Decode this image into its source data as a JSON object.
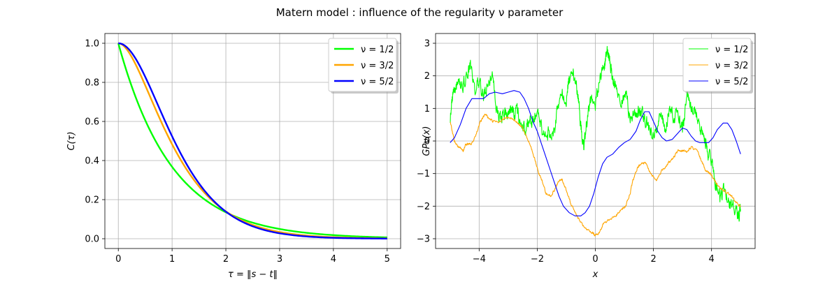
{
  "figure": {
    "title": "Matern model : influence of the regularity ν parameter"
  },
  "chart_data": [
    {
      "type": "line",
      "xlabel": "τ = ‖s − t‖",
      "ylabel": "C(τ)",
      "xlim": [
        -0.25,
        5.25
      ],
      "ylim": [
        -0.05,
        1.05
      ],
      "xticks": [
        0,
        1,
        2,
        3,
        4,
        5
      ],
      "yticks": [
        0.0,
        0.2,
        0.4,
        0.6,
        0.8,
        1.0
      ],
      "xtick_labels": [
        "0",
        "1",
        "2",
        "3",
        "4",
        "5"
      ],
      "ytick_labels": [
        "0.0",
        "0.2",
        "0.4",
        "0.6",
        "0.8",
        "1.0"
      ],
      "grid": true,
      "legend_position": "top-right",
      "x_samples": {
        "start": 0,
        "stop": 5,
        "step": 0.1
      },
      "series": [
        {
          "name": "ν = 1/2",
          "color": "#00ff00",
          "kind": "matern12",
          "length_scale": 1.0
        },
        {
          "name": "ν = 3/2",
          "color": "#ffa500",
          "kind": "matern32",
          "length_scale": 1.0
        },
        {
          "name": "ν = 5/2",
          "color": "#0000ff",
          "kind": "matern52",
          "length_scale": 1.0
        }
      ]
    },
    {
      "type": "line",
      "xlabel": "x",
      "ylabel": "GPν(x)",
      "xlim": [
        -5.5,
        5.5
      ],
      "ylim": [
        -3.3,
        3.3
      ],
      "xticks": [
        -4,
        -2,
        0,
        2,
        4
      ],
      "yticks": [
        -3,
        -2,
        -1,
        0,
        1,
        2,
        3
      ],
      "xtick_labels": [
        "−4",
        "−2",
        "0",
        "2",
        "4"
      ],
      "ytick_labels": [
        "−3",
        "−2",
        "−1",
        "0",
        "1",
        "2",
        "3"
      ],
      "grid": true,
      "legend_position": "top-right",
      "series": [
        {
          "name": "ν = 1/2",
          "color": "#00ff00",
          "noise_amplitude": 0.22,
          "points": [
            [
              -5.0,
              0.7
            ],
            [
              -4.9,
              1.5
            ],
            [
              -4.75,
              1.8
            ],
            [
              -4.6,
              1.6
            ],
            [
              -4.45,
              2.0
            ],
            [
              -4.3,
              2.3
            ],
            [
              -4.15,
              1.6
            ],
            [
              -4.0,
              1.9
            ],
            [
              -3.85,
              1.4
            ],
            [
              -3.7,
              1.7
            ],
            [
              -3.55,
              2.1
            ],
            [
              -3.4,
              1.0
            ],
            [
              -3.25,
              0.6
            ],
            [
              -3.1,
              0.9
            ],
            [
              -2.95,
              1.0
            ],
            [
              -2.8,
              0.9
            ],
            [
              -2.65,
              0.8
            ],
            [
              -2.5,
              0.3
            ],
            [
              -2.35,
              0.5
            ],
            [
              -2.2,
              0.6
            ],
            [
              -2.05,
              0.9
            ],
            [
              -1.9,
              0.5
            ],
            [
              -1.75,
              0.1
            ],
            [
              -1.6,
              0.3
            ],
            [
              -1.45,
              0.1
            ],
            [
              -1.3,
              1.0
            ],
            [
              -1.15,
              1.4
            ],
            [
              -1.0,
              1.3
            ],
            [
              -0.9,
              1.9
            ],
            [
              -0.75,
              2.0
            ],
            [
              -0.6,
              1.5
            ],
            [
              -0.5,
              0.5
            ],
            [
              -0.4,
              -0.3
            ],
            [
              -0.3,
              0.6
            ],
            [
              -0.15,
              1.3
            ],
            [
              0.0,
              1.1
            ],
            [
              0.15,
              1.9
            ],
            [
              0.3,
              2.2
            ],
            [
              0.4,
              2.8
            ],
            [
              0.5,
              2.5
            ],
            [
              0.6,
              1.9
            ],
            [
              0.75,
              1.6
            ],
            [
              0.9,
              1.1
            ],
            [
              1.05,
              1.6
            ],
            [
              1.2,
              0.6
            ],
            [
              1.35,
              0.8
            ],
            [
              1.5,
              0.9
            ],
            [
              1.65,
              0.8
            ],
            [
              1.8,
              0.5
            ],
            [
              1.95,
              0.2
            ],
            [
              2.1,
              0.4
            ],
            [
              2.25,
              0.9
            ],
            [
              2.4,
              0.3
            ],
            [
              2.55,
              0.9
            ],
            [
              2.7,
              0.7
            ],
            [
              2.85,
              0.8
            ],
            [
              3.0,
              0.3
            ],
            [
              3.15,
              1.3
            ],
            [
              3.3,
              1.1
            ],
            [
              3.45,
              0.8
            ],
            [
              3.6,
              0.4
            ],
            [
              3.75,
              0.1
            ],
            [
              3.85,
              -0.3
            ],
            [
              4.0,
              -0.6
            ],
            [
              4.15,
              -1.3
            ],
            [
              4.3,
              -1.8
            ],
            [
              4.45,
              -1.4
            ],
            [
              4.6,
              -2.0
            ],
            [
              4.75,
              -1.9
            ],
            [
              4.9,
              -2.3
            ],
            [
              5.0,
              -2.1
            ]
          ]
        },
        {
          "name": "ν = 3/2",
          "color": "#ffa500",
          "noise_amplitude": 0.04,
          "points": [
            [
              -5.0,
              0.6
            ],
            [
              -4.85,
              0.0
            ],
            [
              -4.7,
              -0.2
            ],
            [
              -4.55,
              -0.3
            ],
            [
              -4.45,
              -0.1
            ],
            [
              -4.3,
              -0.1
            ],
            [
              -4.15,
              0.1
            ],
            [
              -3.95,
              0.6
            ],
            [
              -3.8,
              0.8
            ],
            [
              -3.65,
              0.7
            ],
            [
              -3.5,
              0.6
            ],
            [
              -3.3,
              0.6
            ],
            [
              -3.1,
              0.7
            ],
            [
              -2.9,
              0.7
            ],
            [
              -2.75,
              0.6
            ],
            [
              -2.6,
              0.5
            ],
            [
              -2.45,
              0.3
            ],
            [
              -2.25,
              -0.1
            ],
            [
              -2.1,
              -0.5
            ],
            [
              -1.95,
              -1.0
            ],
            [
              -1.8,
              -1.3
            ],
            [
              -1.7,
              -1.6
            ],
            [
              -1.55,
              -1.7
            ],
            [
              -1.4,
              -1.5
            ],
            [
              -1.25,
              -1.2
            ],
            [
              -1.15,
              -1.2
            ],
            [
              -1.0,
              -1.5
            ],
            [
              -0.85,
              -1.9
            ],
            [
              -0.7,
              -2.2
            ],
            [
              -0.5,
              -2.5
            ],
            [
              -0.3,
              -2.7
            ],
            [
              -0.1,
              -2.8
            ],
            [
              0.0,
              -2.9
            ],
            [
              0.15,
              -2.8
            ],
            [
              0.3,
              -2.5
            ],
            [
              0.5,
              -2.4
            ],
            [
              0.7,
              -2.3
            ],
            [
              0.9,
              -2.1
            ],
            [
              1.05,
              -2.0
            ],
            [
              1.2,
              -1.6
            ],
            [
              1.3,
              -1.2
            ],
            [
              1.45,
              -0.8
            ],
            [
              1.6,
              -0.7
            ],
            [
              1.75,
              -0.7
            ],
            [
              1.9,
              -1.0
            ],
            [
              2.1,
              -1.2
            ],
            [
              2.3,
              -0.9
            ],
            [
              2.5,
              -0.7
            ],
            [
              2.7,
              -0.5
            ],
            [
              2.85,
              -0.3
            ],
            [
              3.0,
              -0.3
            ],
            [
              3.15,
              -0.3
            ],
            [
              3.3,
              -0.2
            ],
            [
              3.5,
              -0.3
            ],
            [
              3.65,
              -0.6
            ],
            [
              3.8,
              -0.9
            ],
            [
              3.95,
              -1.0
            ],
            [
              4.1,
              -1.2
            ],
            [
              4.25,
              -1.4
            ],
            [
              4.4,
              -1.5
            ],
            [
              4.55,
              -1.6
            ],
            [
              4.7,
              -1.7
            ],
            [
              4.85,
              -1.9
            ],
            [
              5.0,
              -2.0
            ]
          ]
        },
        {
          "name": "ν = 5/2",
          "color": "#0000ff",
          "noise_amplitude": 0.0,
          "points": [
            [
              -5.0,
              -0.05
            ],
            [
              -4.85,
              0.1
            ],
            [
              -4.65,
              0.5
            ],
            [
              -4.45,
              1.0
            ],
            [
              -4.25,
              1.3
            ],
            [
              -4.05,
              1.3
            ],
            [
              -3.85,
              1.3
            ],
            [
              -3.65,
              1.45
            ],
            [
              -3.45,
              1.5
            ],
            [
              -3.2,
              1.45
            ],
            [
              -3.0,
              1.5
            ],
            [
              -2.8,
              1.55
            ],
            [
              -2.6,
              1.5
            ],
            [
              -2.45,
              1.3
            ],
            [
              -2.3,
              1.0
            ],
            [
              -2.15,
              0.6
            ],
            [
              -2.0,
              0.3
            ],
            [
              -1.85,
              -0.1
            ],
            [
              -1.7,
              -0.5
            ],
            [
              -1.55,
              -0.9
            ],
            [
              -1.4,
              -1.3
            ],
            [
              -1.25,
              -1.7
            ],
            [
              -1.1,
              -2.0
            ],
            [
              -0.9,
              -2.2
            ],
            [
              -0.7,
              -2.3
            ],
            [
              -0.5,
              -2.3
            ],
            [
              -0.35,
              -2.2
            ],
            [
              -0.2,
              -2.0
            ],
            [
              -0.05,
              -1.6
            ],
            [
              0.1,
              -1.1
            ],
            [
              0.25,
              -0.7
            ],
            [
              0.4,
              -0.5
            ],
            [
              0.6,
              -0.4
            ],
            [
              0.8,
              -0.2
            ],
            [
              1.0,
              -0.05
            ],
            [
              1.2,
              0.05
            ],
            [
              1.4,
              0.3
            ],
            [
              1.55,
              0.65
            ],
            [
              1.7,
              0.9
            ],
            [
              1.85,
              0.9
            ],
            [
              2.0,
              0.6
            ],
            [
              2.15,
              0.3
            ],
            [
              2.3,
              0.1
            ],
            [
              2.45,
              0.0
            ],
            [
              2.65,
              0.05
            ],
            [
              2.85,
              0.25
            ],
            [
              3.0,
              0.4
            ],
            [
              3.15,
              0.35
            ],
            [
              3.3,
              0.15
            ],
            [
              3.45,
              0.0
            ],
            [
              3.6,
              -0.05
            ],
            [
              3.75,
              -0.05
            ],
            [
              3.9,
              -0.05
            ],
            [
              4.05,
              0.1
            ],
            [
              4.2,
              0.35
            ],
            [
              4.4,
              0.55
            ],
            [
              4.55,
              0.55
            ],
            [
              4.7,
              0.35
            ],
            [
              4.85,
              0.0
            ],
            [
              5.0,
              -0.4
            ]
          ]
        }
      ]
    }
  ]
}
